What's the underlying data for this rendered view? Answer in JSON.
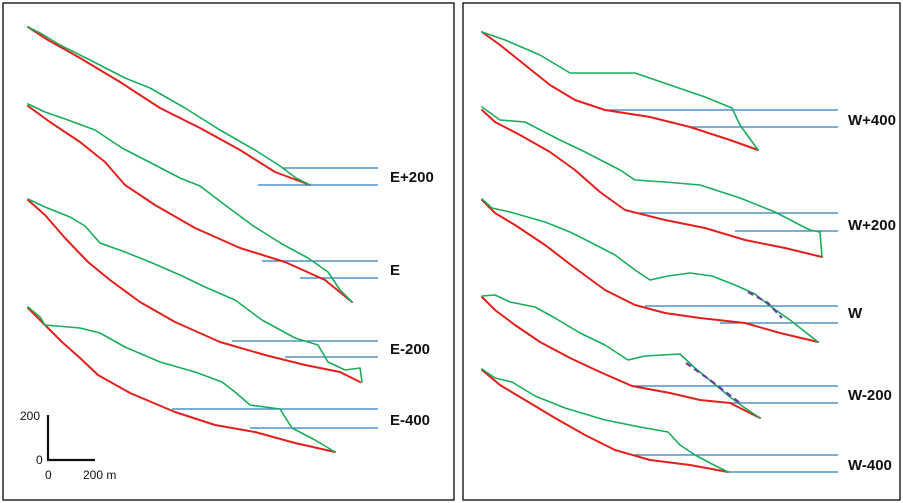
{
  "panels": [
    {
      "side": "left",
      "profiles": [
        {
          "label": "E+200"
        },
        {
          "label": "E"
        },
        {
          "label": "E-200"
        },
        {
          "label": "E-400"
        }
      ]
    },
    {
      "side": "right",
      "profiles": [
        {
          "label": "W+400"
        },
        {
          "label": "W+200"
        },
        {
          "label": "W"
        },
        {
          "label": "W-200"
        },
        {
          "label": "W-400"
        }
      ]
    }
  ],
  "scale_bar": {
    "vertical_label": "200",
    "origin_label": "0",
    "horizontal_zero": "0",
    "horizontal_label": "200 m"
  },
  "colors": {
    "red_profile": "#e3201b",
    "green_profile": "#18ad5b",
    "blue_level": "#2a7dbf",
    "dashed_feature": "#6b3fa0"
  }
}
